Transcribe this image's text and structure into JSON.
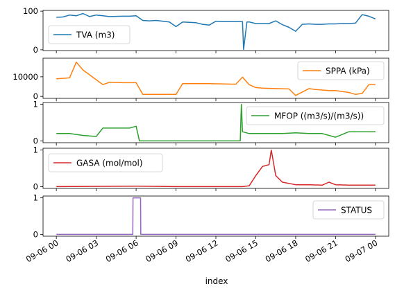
{
  "chart_data": [
    {
      "type": "line",
      "series": [
        {
          "name": "TVA (m3)",
          "color": "#1f77b4"
        }
      ],
      "ylim": [
        -2,
        102
      ],
      "yticks": [
        0,
        100
      ],
      "legend": "lower-left",
      "x": [
        "2023-09-06 00:00",
        "2023-09-06 00:30",
        "2023-09-06 01:00",
        "2023-09-06 01:30",
        "2023-09-06 02:00",
        "2023-09-06 02:30",
        "2023-09-06 03:00",
        "2023-09-06 03:30",
        "2023-09-06 04:00",
        "2023-09-06 05:00",
        "2023-09-06 05:30",
        "2023-09-06 06:00",
        "2023-09-06 06:30",
        "2023-09-06 07:00",
        "2023-09-06 07:30",
        "2023-09-06 08:00",
        "2023-09-06 08:30",
        "2023-09-06 09:00",
        "2023-09-06 09:30",
        "2023-09-06 10:00",
        "2023-09-06 10:30",
        "2023-09-06 11:00",
        "2023-09-06 11:30",
        "2023-09-06 12:00",
        "2023-09-06 12:30",
        "2023-09-06 13:00",
        "2023-09-06 13:30",
        "2023-09-06 14:00",
        "2023-09-06 14:05",
        "2023-09-06 14:20",
        "2023-09-06 14:30",
        "2023-09-06 15:00",
        "2023-09-06 15:30",
        "2023-09-06 16:00",
        "2023-09-06 16:30",
        "2023-09-06 17:00",
        "2023-09-06 17:30",
        "2023-09-06 18:00",
        "2023-09-06 18:30",
        "2023-09-06 19:00",
        "2023-09-06 19:30",
        "2023-09-06 20:00",
        "2023-09-06 20:30",
        "2023-09-06 21:00",
        "2023-09-06 21:30",
        "2023-09-06 22:00",
        "2023-09-06 22:30",
        "2023-09-06 23:00",
        "2023-09-06 23:30",
        "2023-09-07 00:00"
      ],
      "values": [
        84,
        85,
        90,
        88,
        94,
        86,
        90,
        88,
        86,
        87,
        87,
        88,
        76,
        75,
        76,
        74,
        72,
        60,
        72,
        71,
        70,
        66,
        64,
        74,
        73,
        73,
        73,
        73,
        1,
        72,
        72,
        68,
        68,
        68,
        75,
        65,
        58,
        48,
        66,
        67,
        66,
        66,
        67,
        67,
        68,
        68,
        69,
        91,
        87,
        80
      ]
    },
    {
      "type": "line",
      "series": [
        {
          "name": "SPPA (kPa)",
          "color": "#ff7f0e"
        }
      ],
      "ylim": [
        -1000,
        19500
      ],
      "yticks": [
        0,
        10000
      ],
      "ytick_labels": [
        "0",
        "10000"
      ],
      "legend": "upper-right",
      "x": [
        "2023-09-06 00:00",
        "2023-09-06 00:30",
        "2023-09-06 01:00",
        "2023-09-06 01:30",
        "2023-09-06 02:00",
        "2023-09-06 02:30",
        "2023-09-06 03:00",
        "2023-09-06 03:30",
        "2023-09-06 04:00",
        "2023-09-06 05:00",
        "2023-09-06 06:00",
        "2023-09-06 06:30",
        "2023-09-06 07:00",
        "2023-09-06 08:00",
        "2023-09-06 09:00",
        "2023-09-06 09:30",
        "2023-09-06 10:30",
        "2023-09-06 11:30",
        "2023-09-06 12:30",
        "2023-09-06 13:30",
        "2023-09-06 14:00",
        "2023-09-06 14:30",
        "2023-09-06 15:00",
        "2023-09-06 15:30",
        "2023-09-06 16:30",
        "2023-09-06 17:30",
        "2023-09-06 18:00",
        "2023-09-06 19:00",
        "2023-09-06 19:30",
        "2023-09-06 20:30",
        "2023-09-06 21:00",
        "2023-09-06 22:00",
        "2023-09-06 22:30",
        "2023-09-06 23:00",
        "2023-09-06 23:30",
        "2023-09-07 00:00"
      ],
      "values": [
        9000,
        9200,
        9500,
        17500,
        13500,
        11000,
        8500,
        6000,
        7200,
        7000,
        7000,
        1000,
        1000,
        1000,
        1000,
        6500,
        6500,
        6500,
        6400,
        6200,
        9800,
        6000,
        4500,
        4200,
        4000,
        3800,
        500,
        4000,
        3500,
        3000,
        3000,
        2000,
        1000,
        1500,
        6000,
        6000
      ]
    },
    {
      "type": "line",
      "series": [
        {
          "name": "MFOP ((m3/s)/(m3/s))",
          "color": "#2ca02c"
        }
      ],
      "ylim": [
        -0.05,
        1.05
      ],
      "yticks": [
        0,
        1
      ],
      "legend": "upper-right",
      "x": [
        "2023-09-06 00:00",
        "2023-09-06 01:00",
        "2023-09-06 02:00",
        "2023-09-06 03:00",
        "2023-09-06 03:30",
        "2023-09-06 04:30",
        "2023-09-06 05:30",
        "2023-09-06 06:00",
        "2023-09-06 06:15",
        "2023-09-06 07:00",
        "2023-09-06 09:00",
        "2023-09-06 12:00",
        "2023-09-06 13:50",
        "2023-09-06 13:55",
        "2023-09-06 14:00",
        "2023-09-06 14:30",
        "2023-09-06 15:00",
        "2023-09-06 16:00",
        "2023-09-06 17:00",
        "2023-09-06 18:00",
        "2023-09-06 19:00",
        "2023-09-06 20:00",
        "2023-09-06 21:00",
        "2023-09-06 22:00",
        "2023-09-06 23:00",
        "2023-09-07 00:00"
      ],
      "values": [
        0.2,
        0.2,
        0.15,
        0.12,
        0.35,
        0.35,
        0.35,
        0.4,
        0.0,
        0.0,
        0.0,
        0.0,
        0.0,
        1.0,
        0.25,
        0.2,
        0.2,
        0.2,
        0.2,
        0.22,
        0.2,
        0.2,
        0.1,
        0.25,
        0.25,
        0.25
      ]
    },
    {
      "type": "line",
      "series": [
        {
          "name": "GASA (mol/mol)",
          "color": "#d62728"
        }
      ],
      "ylim": [
        -0.05,
        1.05
      ],
      "yticks": [
        0,
        1
      ],
      "legend": "upper-left",
      "x": [
        "2023-09-06 00:00",
        "2023-09-06 06:00",
        "2023-09-06 09:00",
        "2023-09-06 12:00",
        "2023-09-06 14:00",
        "2023-09-06 14:30",
        "2023-09-06 15:00",
        "2023-09-06 15:30",
        "2023-09-06 16:00",
        "2023-09-06 16:10",
        "2023-09-06 16:30",
        "2023-09-06 17:00",
        "2023-09-06 18:00",
        "2023-09-06 19:00",
        "2023-09-06 20:00",
        "2023-09-06 20:30",
        "2023-09-06 21:00",
        "2023-09-06 22:00",
        "2023-09-07 00:00"
      ],
      "values": [
        0.0,
        0.01,
        0.0,
        0.0,
        0.0,
        0.02,
        0.3,
        0.55,
        0.6,
        1.0,
        0.3,
        0.12,
        0.05,
        0.05,
        0.04,
        0.12,
        0.05,
        0.04,
        0.04
      ]
    },
    {
      "type": "line",
      "series": [
        {
          "name": "STATUS",
          "color": "#9467bd"
        }
      ],
      "ylim": [
        -0.05,
        1.05
      ],
      "yticks": [
        0,
        1
      ],
      "legend": "upper-right",
      "xlabel": "index",
      "x": [
        "2023-09-06 00:00",
        "2023-09-06 05:45",
        "2023-09-06 05:46",
        "2023-09-06 06:20",
        "2023-09-06 06:21",
        "2023-09-07 00:00"
      ],
      "values": [
        0,
        0,
        1,
        1,
        0,
        0
      ]
    }
  ],
  "x_axis": {
    "ticks": [
      "2023-09-06 00:00",
      "2023-09-06 03:00",
      "2023-09-06 06:00",
      "2023-09-06 09:00",
      "2023-09-06 12:00",
      "2023-09-06 15:00",
      "2023-09-06 18:00",
      "2023-09-06 21:00",
      "2023-09-07 00:00"
    ],
    "tick_labels": [
      "09-06 00",
      "09-06 03",
      "09-06 06",
      "09-06 09",
      "09-06 12",
      "09-06 15",
      "09-06 18",
      "09-06 21",
      "09-07 00"
    ],
    "label": "index",
    "range": [
      "2023-09-05 23:00",
      "2023-09-07 01:00"
    ]
  }
}
